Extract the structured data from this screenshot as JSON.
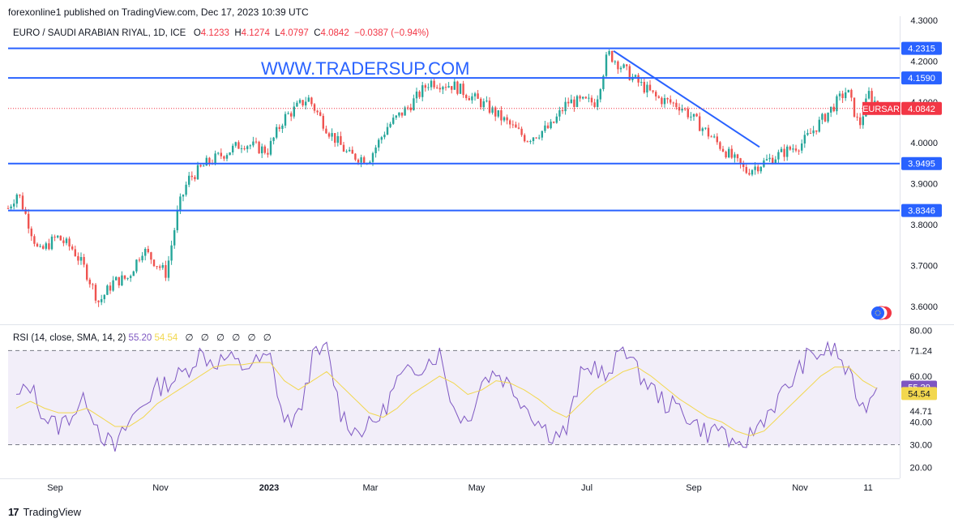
{
  "header": {
    "publish_line": "forexonline1 published on TradingView.com, Dec 17, 2023 10:39 UTC"
  },
  "symbol_bar": {
    "title": "EURO / SAUDI ARABIAN RIYAL, 1D, ICE",
    "open_label": "O",
    "open": "4.1233",
    "high_label": "H",
    "high": "4.1274",
    "low_label": "L",
    "low": "4.0797",
    "close_label": "C",
    "close": "4.0842",
    "change": "−0.0387 (−0.94%)"
  },
  "watermark": "WWW.TRADERSUP.COM",
  "rsi_legend": {
    "label": "RSI (14, close, SMA, 14, 2)",
    "rsi_value": "55.20",
    "sma_value": "54.54",
    "na_values": [
      "∅",
      "∅",
      "∅",
      "∅",
      "∅",
      "∅"
    ]
  },
  "footer": {
    "brand": "TradingView",
    "brand_mark": "17"
  },
  "colors": {
    "up": "#26a69a",
    "down": "#ef5350",
    "hline": "#2962ff",
    "rsi": "#7e57c2",
    "rsi_sma": "#f2d74e",
    "badge_red": "#f23645"
  },
  "chart_data": [
    {
      "type": "candlestick",
      "title": "EURO / SAUDI ARABIAN RIYAL, 1D, ICE",
      "ylim": [
        3.56,
        4.31
      ],
      "y_ticks": [
        "4.3000",
        "4.2000",
        "4.1000",
        "4.0000",
        "3.9000",
        "3.8000",
        "3.7000",
        "3.6000"
      ],
      "x_ticks": [
        "Sep",
        "Nov",
        "2023",
        "Mar",
        "May",
        "Jul",
        "Sep",
        "Nov",
        "11"
      ],
      "horizontal_lines": [
        {
          "value": 4.2315,
          "label": "4.2315"
        },
        {
          "value": 4.159,
          "label": "4.1590"
        },
        {
          "value": 3.9495,
          "label": "3.9495"
        },
        {
          "value": 3.8346,
          "label": "3.8346"
        }
      ],
      "trendline": {
        "from": {
          "date": "Jul 2023",
          "value": 4.225
        },
        "to": {
          "date": "Oct 2023",
          "value": 3.99
        }
      },
      "last_price": {
        "symbol": "EURSAR",
        "value": "4.0842"
      },
      "close_path": [
        {
          "x": "Aug 2022",
          "y": 3.84
        },
        {
          "x": "Aug 2022",
          "y": 3.88
        },
        {
          "x": "Sep 2022",
          "y": 3.73
        },
        {
          "x": "Sep 2022",
          "y": 3.77
        },
        {
          "x": "Sep 2022",
          "y": 3.74
        },
        {
          "x": "Sep 2022",
          "y": 3.69
        },
        {
          "x": "Oct 2022",
          "y": 3.61
        },
        {
          "x": "Oct 2022",
          "y": 3.66
        },
        {
          "x": "Oct 2022",
          "y": 3.67
        },
        {
          "x": "Oct 2022",
          "y": 3.74
        },
        {
          "x": "Nov 2022",
          "y": 3.68
        },
        {
          "x": "Nov 2022",
          "y": 3.84
        },
        {
          "x": "Nov 2022",
          "y": 3.91
        },
        {
          "x": "Dec 2022",
          "y": 3.95
        },
        {
          "x": "Dec 2022",
          "y": 4.0
        },
        {
          "x": "Jan 2023",
          "y": 3.98
        },
        {
          "x": "Jan 2023",
          "y": 4.06
        },
        {
          "x": "Feb 2023",
          "y": 4.11
        },
        {
          "x": "Feb 2023",
          "y": 4.03
        },
        {
          "x": "Mar 2023",
          "y": 3.97
        },
        {
          "x": "Mar 2023",
          "y": 3.96
        },
        {
          "x": "Mar 2023",
          "y": 4.04
        },
        {
          "x": "Apr 2023",
          "y": 4.09
        },
        {
          "x": "Apr 2023",
          "y": 4.15
        },
        {
          "x": "May 2023",
          "y": 4.14
        },
        {
          "x": "May 2023",
          "y": 4.09
        },
        {
          "x": "Jun 2023",
          "y": 4.01
        },
        {
          "x": "Jun 2023",
          "y": 4.04
        },
        {
          "x": "Jun 2023",
          "y": 4.1
        },
        {
          "x": "Jul 2023",
          "y": 4.1
        },
        {
          "x": "Jul 2023",
          "y": 4.22
        },
        {
          "x": "Jul 2023",
          "y": 4.16
        },
        {
          "x": "Aug 2023",
          "y": 4.11
        },
        {
          "x": "Aug 2023",
          "y": 4.09
        },
        {
          "x": "Sep 2023",
          "y": 4.04
        },
        {
          "x": "Sep 2023",
          "y": 4.0
        },
        {
          "x": "Oct 2023",
          "y": 3.93
        },
        {
          "x": "Oct 2023",
          "y": 3.95
        },
        {
          "x": "Oct 2023",
          "y": 3.97
        },
        {
          "x": "Nov 2023",
          "y": 4.0
        },
        {
          "x": "Nov 2023",
          "y": 4.07
        },
        {
          "x": "Nov 2023",
          "y": 4.13
        },
        {
          "x": "Dec 2023",
          "y": 4.04
        },
        {
          "x": "Dec 2023",
          "y": 4.12
        },
        {
          "x": "Dec 2023",
          "y": 4.084
        }
      ]
    },
    {
      "type": "line",
      "title": "RSI (14, close, SMA, 14, 2)",
      "ylim": [
        16,
        82
      ],
      "y_ticks": [
        "80.00",
        "71.24",
        "60.00",
        "44.71",
        "40.00",
        "30.00",
        "20.00"
      ],
      "band": [
        30,
        71.24
      ],
      "series": [
        {
          "name": "RSI",
          "last": "55.20",
          "values": [
            50,
            56,
            42,
            38,
            44,
            50,
            35,
            28,
            40,
            48,
            55,
            58,
            62,
            70,
            66,
            68,
            64,
            66,
            68,
            40,
            42,
            68,
            72,
            44,
            36,
            38,
            44,
            58,
            62,
            66,
            70,
            46,
            40,
            58,
            62,
            56,
            48,
            40,
            34,
            36,
            60,
            65,
            58,
            75,
            62,
            55,
            48,
            46,
            40,
            35,
            38,
            26,
            34,
            42,
            50,
            58,
            68,
            70,
            72,
            60,
            46,
            55
          ]
        },
        {
          "name": "RSI SMA",
          "last": "54.54",
          "values": [
            46,
            49,
            46,
            44,
            44,
            46,
            42,
            38,
            38,
            42,
            48,
            52,
            56,
            60,
            64,
            65,
            65,
            66,
            66,
            58,
            54,
            58,
            62,
            56,
            50,
            44,
            42,
            46,
            52,
            56,
            60,
            57,
            52,
            54,
            58,
            57,
            54,
            50,
            45,
            42,
            48,
            54,
            58,
            62,
            64,
            60,
            55,
            50,
            46,
            42,
            40,
            36,
            34,
            36,
            42,
            48,
            54,
            60,
            64,
            64,
            58,
            54.5
          ]
        }
      ]
    }
  ]
}
